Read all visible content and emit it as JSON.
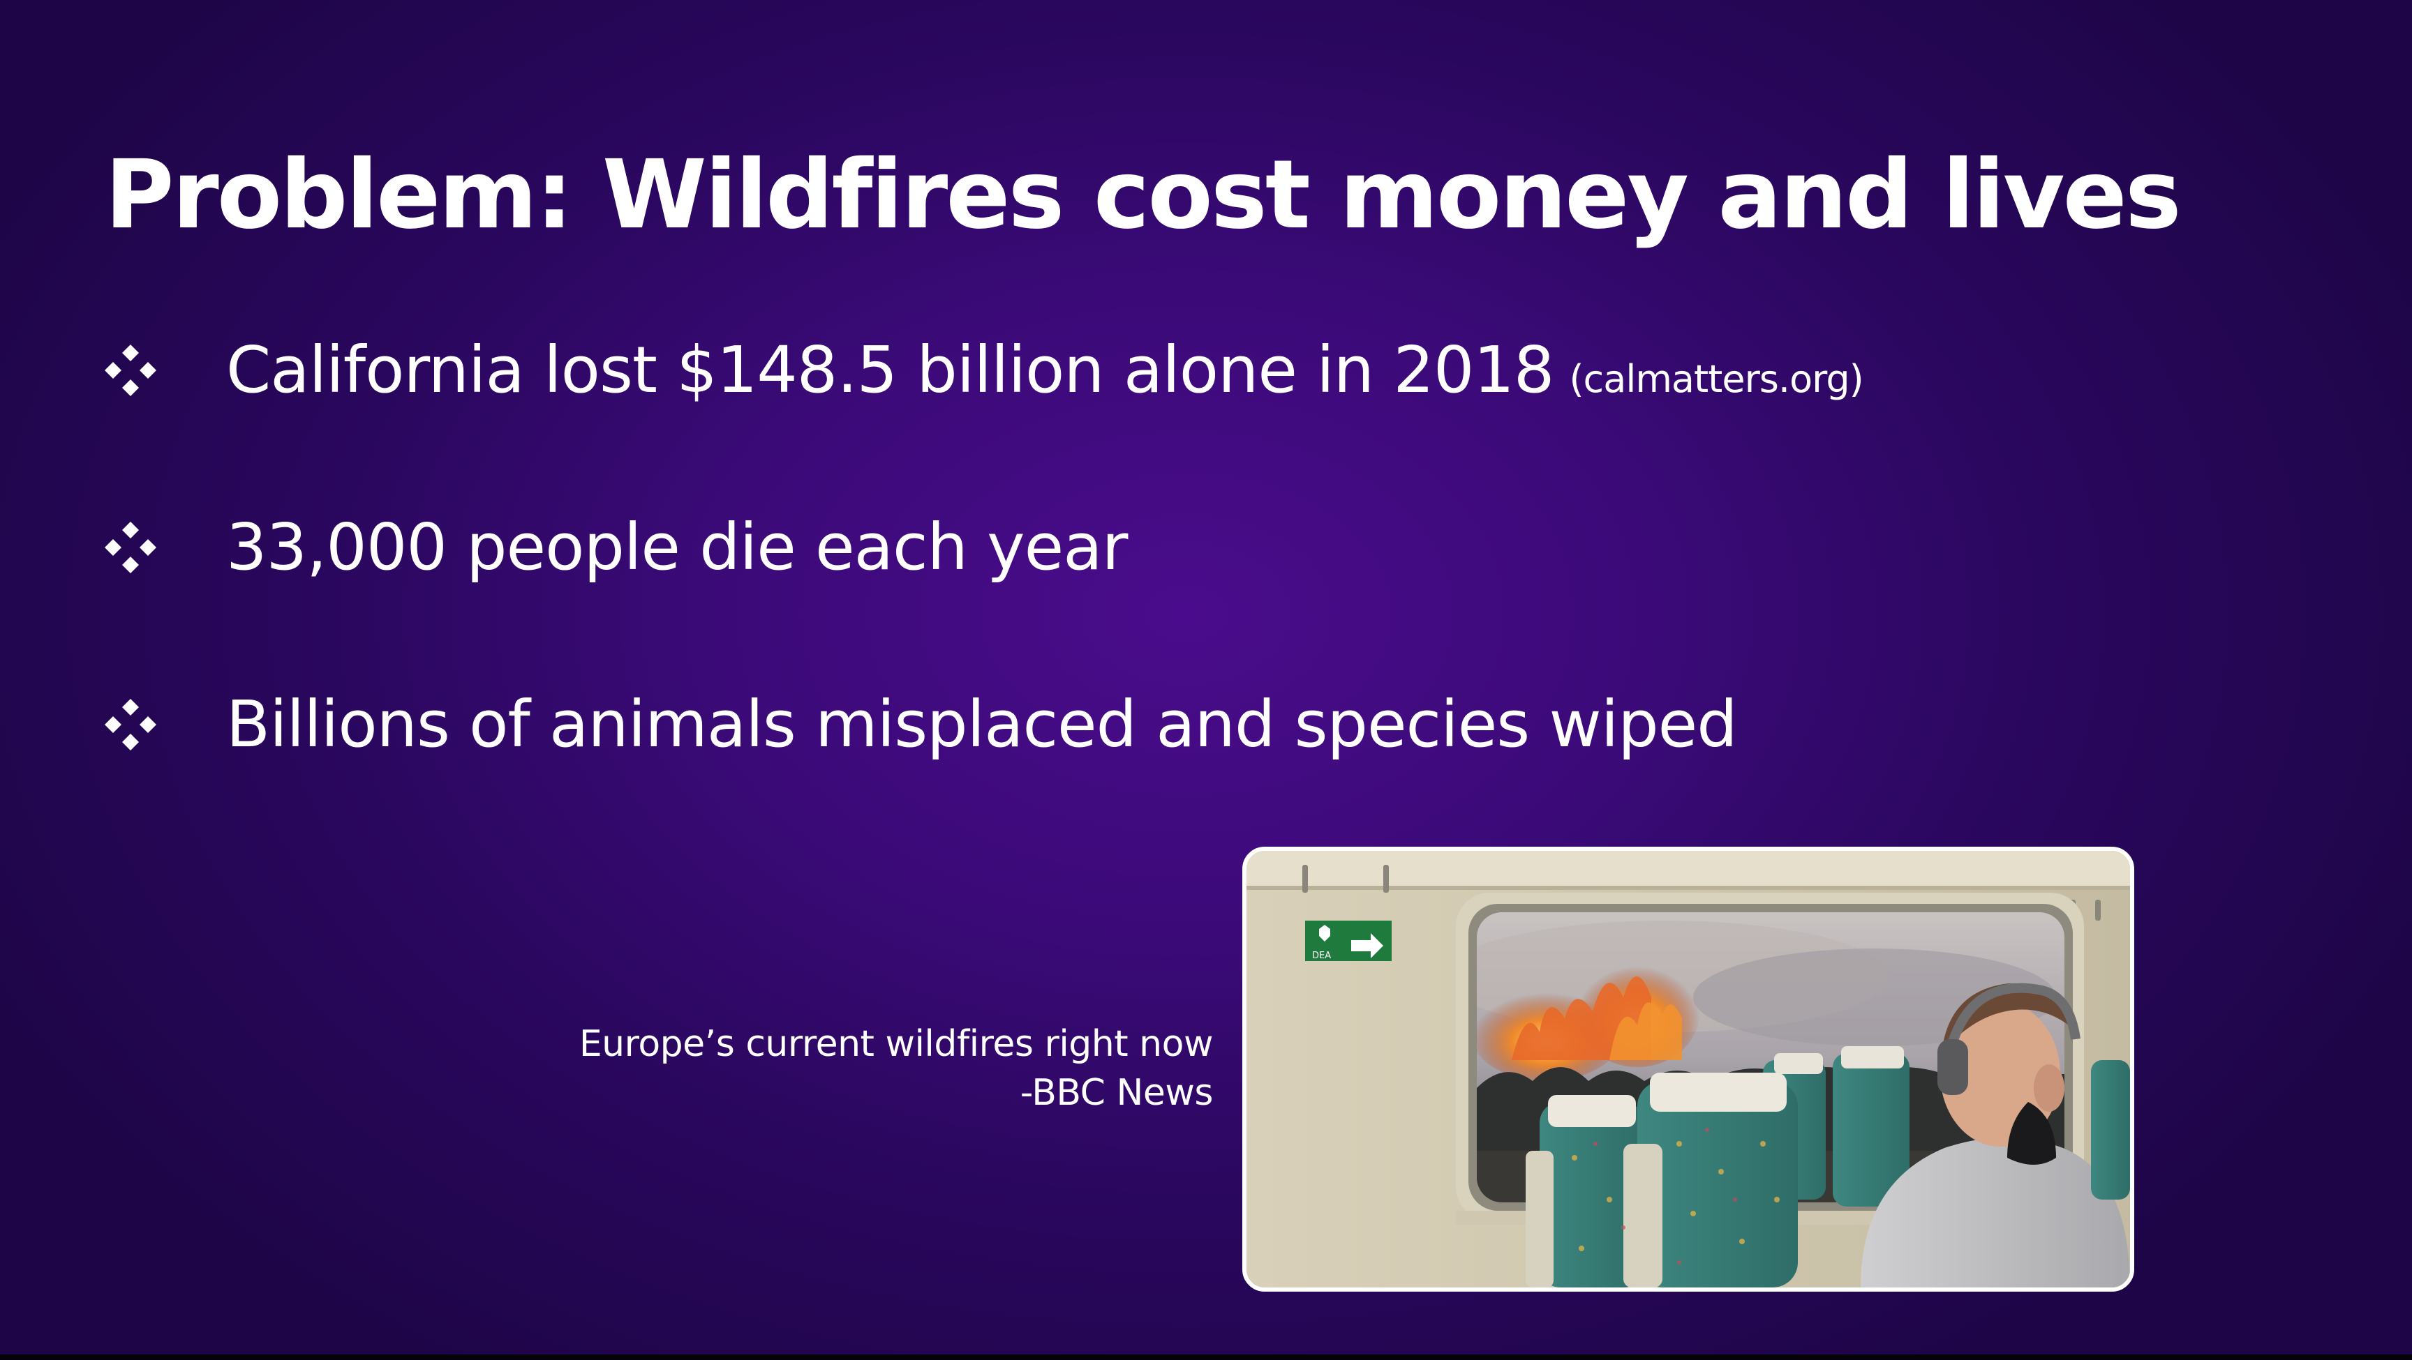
{
  "slide": {
    "title": "Problem: Wildfires cost money and lives",
    "bullets": [
      {
        "text": "California lost $148.5 billion alone in 2018",
        "source": "(calmatters.org)"
      },
      {
        "text": "33,000 people die each year",
        "source": ""
      },
      {
        "text": "Billions of animals misplaced and species wiped",
        "source": ""
      }
    ],
    "bullet_icon": "diamond-cluster-icon",
    "caption": {
      "line1": "Europe’s current wildfires right now",
      "line2": "-BBC News"
    },
    "photo": {
      "name": "wildfire-train-photo",
      "sign_label": "DEA"
    },
    "colors": {
      "background": "#3b0a78",
      "text": "#ffffff"
    }
  }
}
